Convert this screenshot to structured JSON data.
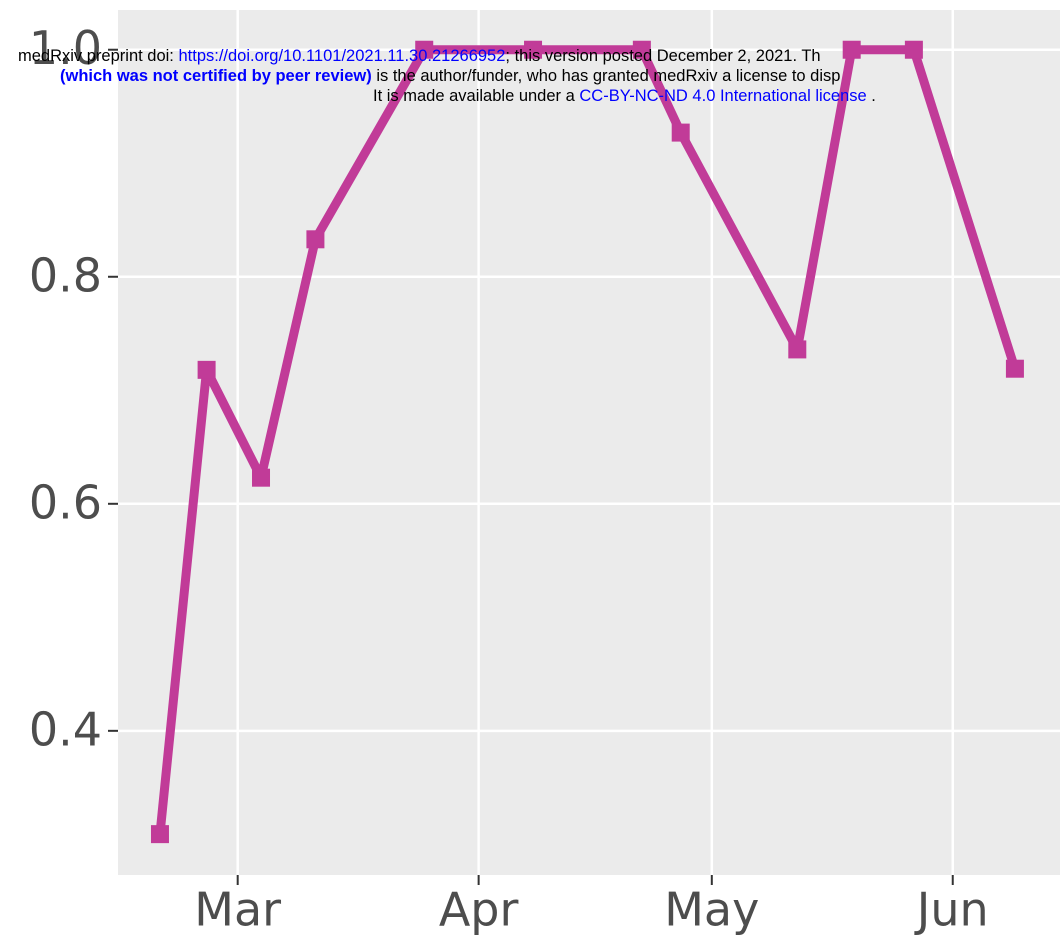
{
  "header": {
    "doi_prefix": "medRxiv preprint doi: ",
    "doi": "https://doi.org/10.1101/2021.11.30.21266952",
    "posted": "; this version posted December 2, 2021. Th",
    "disclaimer_bold": "(which was not certified by peer review)",
    "disclaimer": " is the author/funder, who has granted medRxiv a license to disp",
    "license_prefix": "It is made available under a ",
    "license": "CC-BY-NC-ND 4.0 International license",
    "license_suffix": " ."
  },
  "chart_data": {
    "type": "line",
    "x": [
      50,
      56,
      63,
      70,
      84,
      98,
      112,
      117,
      132,
      139,
      147,
      160
    ],
    "series": [
      {
        "color": "#c13b98",
        "values": [
          0.309,
          0.718,
          0.623,
          0.833,
          1.0,
          1.0,
          1.0,
          0.927,
          0.736,
          1.0,
          1.0,
          0.719
        ]
      }
    ],
    "xlim": [
      44.6,
      165.8
    ],
    "xticks": [
      {
        "value": 60,
        "label": "Mar"
      },
      {
        "value": 91,
        "label": "Apr"
      },
      {
        "value": 121,
        "label": "May"
      },
      {
        "value": 152,
        "label": "Jun"
      }
    ],
    "ylim": [
      0.273,
      1.035
    ],
    "yticks": [
      0.4,
      0.6,
      0.8,
      {
        "value": 1,
        "label": "1.0"
      }
    ],
    "grid": true
  }
}
